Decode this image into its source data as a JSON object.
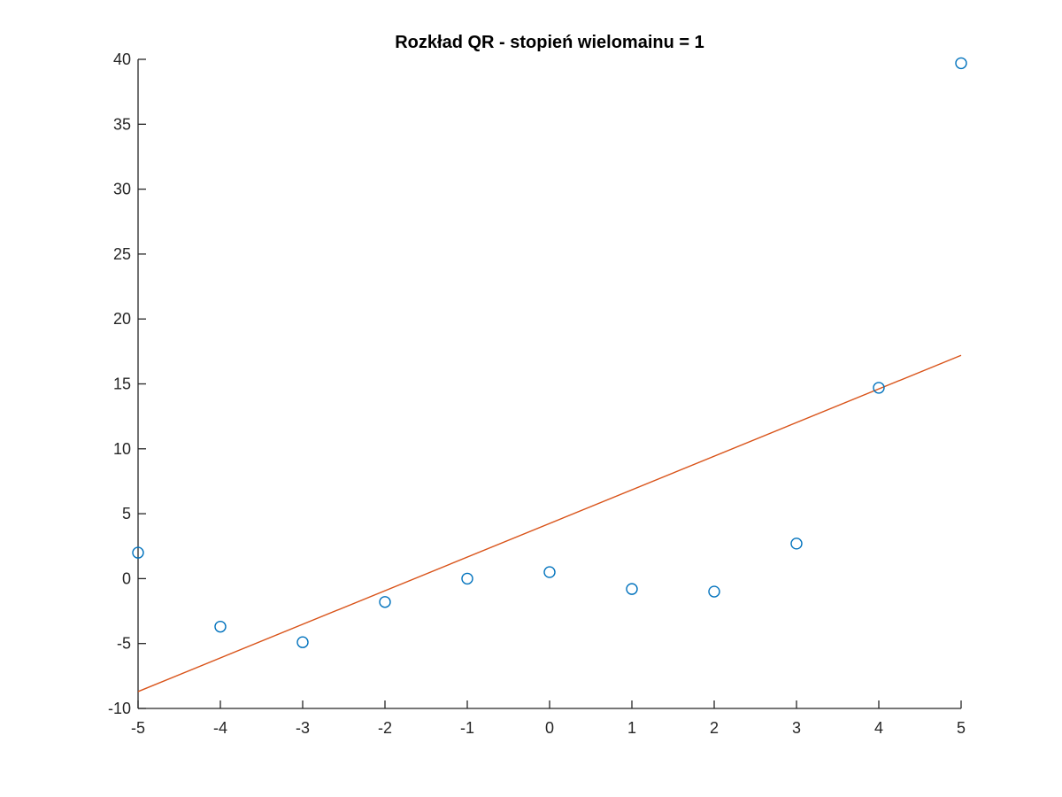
{
  "chart_data": {
    "type": "scatter",
    "title": "Rozkład QR - stopień wielomainu = 1",
    "xlabel": "",
    "ylabel": "",
    "xlim": [
      -5,
      5
    ],
    "ylim": [
      -10,
      40
    ],
    "xticks": [
      -5,
      -4,
      -3,
      -2,
      -1,
      0,
      1,
      2,
      3,
      4,
      5
    ],
    "yticks": [
      -10,
      -5,
      0,
      5,
      10,
      15,
      20,
      25,
      30,
      35,
      40
    ],
    "grid": false,
    "series": [
      {
        "kind": "scatter",
        "marker": "circle-open",
        "color": "#0072BD",
        "x": [
          -5,
          -4,
          -3,
          -2,
          -1,
          0,
          1,
          2,
          3,
          4,
          5
        ],
        "y": [
          2.0,
          -3.7,
          -4.9,
          -1.8,
          0.0,
          0.5,
          -0.8,
          -1.0,
          2.7,
          14.7,
          39.7
        ]
      },
      {
        "kind": "line",
        "color": "#D95319",
        "x": [
          -5,
          5
        ],
        "y": [
          -8.7,
          17.2
        ]
      }
    ]
  }
}
